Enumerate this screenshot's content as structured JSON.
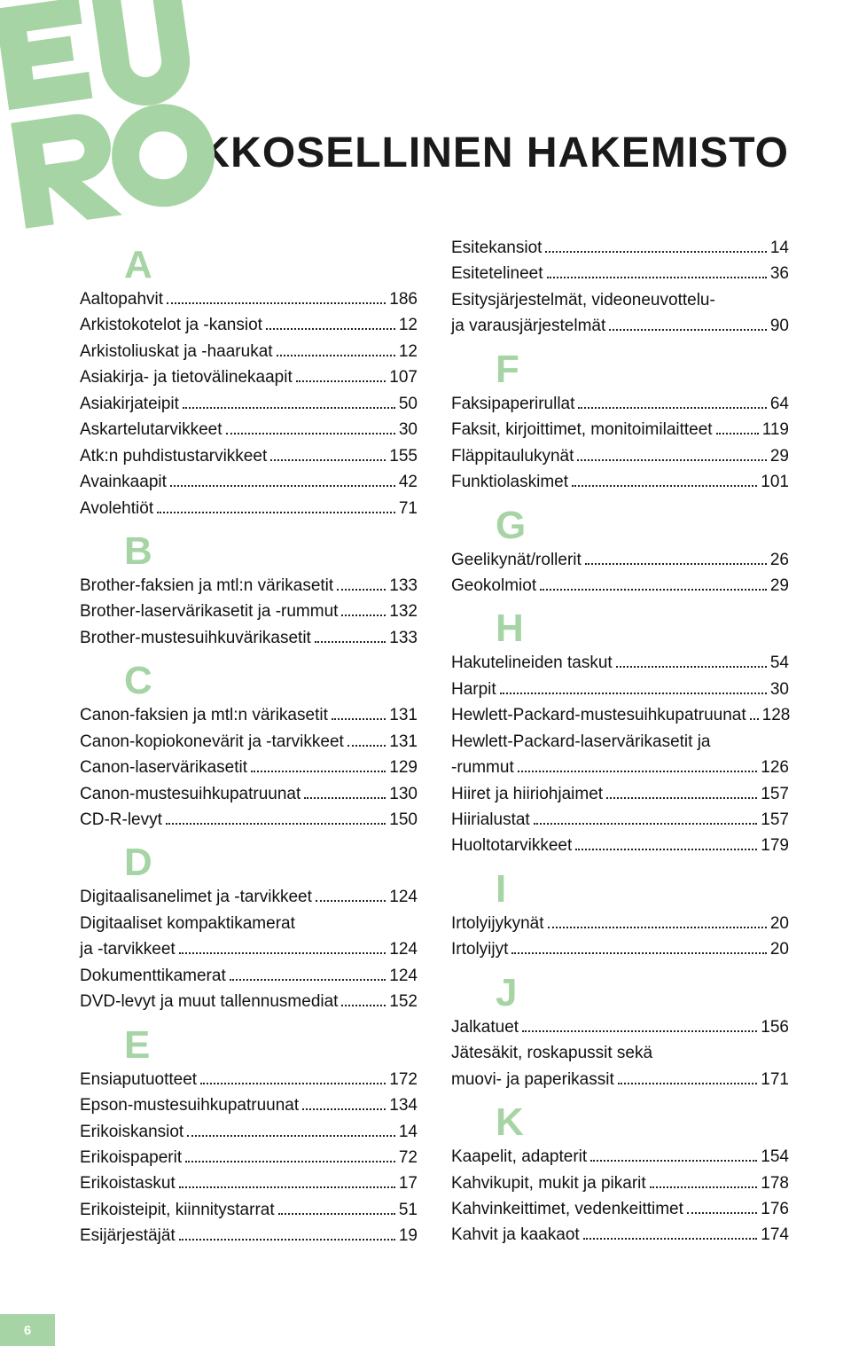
{
  "title": "AAKKOSELLINEN HAKEMISTO",
  "pageNumber": "6",
  "logoColor": "#a7d4a4",
  "letterColor": "#a7d4a4",
  "textColor": "#111111",
  "columns": [
    {
      "groups": [
        {
          "letter": "A",
          "items": [
            {
              "label": "Aaltopahvit",
              "page": "186"
            },
            {
              "label": "Arkistokotelot ja -kansiot",
              "page": "12"
            },
            {
              "label": "Arkistoliuskat ja -haarukat",
              "page": "12"
            },
            {
              "label": "Asiakirja- ja tietovälinekaapit",
              "page": "107"
            },
            {
              "label": "Asiakirjateipit",
              "page": "50"
            },
            {
              "label": "Askartelutarvikkeet",
              "page": "30"
            },
            {
              "label": "Atk:n puhdistustarvikkeet",
              "page": "155"
            },
            {
              "label": "Avainkaapit",
              "page": "42"
            },
            {
              "label": "Avolehtiöt",
              "page": "71"
            }
          ]
        },
        {
          "letter": "B",
          "items": [
            {
              "label": "Brother-faksien ja mtl:n värikasetit",
              "page": "133"
            },
            {
              "label": "Brother-laservärikasetit ja -rummut",
              "page": "132"
            },
            {
              "label": "Brother-mustesuihkuvärikasetit",
              "page": "133"
            }
          ]
        },
        {
          "letter": "C",
          "items": [
            {
              "label": "Canon-faksien ja mtl:n värikasetit",
              "page": "131"
            },
            {
              "label": "Canon-kopiokonevärit ja -tarvikkeet",
              "page": "131"
            },
            {
              "label": "Canon-laservärikasetit",
              "page": "129"
            },
            {
              "label": "Canon-mustesuihkupatruunat",
              "page": "130"
            },
            {
              "label": "CD-R-levyt",
              "page": "150"
            }
          ]
        },
        {
          "letter": "D",
          "items": [
            {
              "label": "Digitaalisanelimet ja -tarvikkeet",
              "page": "124"
            },
            {
              "label": "Digitaaliset kompaktikamerat",
              "cont": true
            },
            {
              "label": "ja -tarvikkeet",
              "page": "124"
            },
            {
              "label": "Dokumenttikamerat",
              "page": "124"
            },
            {
              "label": "DVD-levyt ja muut tallennusmediat",
              "page": "152"
            }
          ]
        },
        {
          "letter": "E",
          "items": [
            {
              "label": "Ensiaputuotteet",
              "page": "172"
            },
            {
              "label": "Epson-mustesuihkupatruunat",
              "page": "134"
            },
            {
              "label": "Erikoiskansiot",
              "page": "14"
            },
            {
              "label": "Erikoispaperit",
              "page": "72"
            },
            {
              "label": "Erikoistaskut",
              "page": "17"
            },
            {
              "label": "Erikoisteipit, kiinnitystarrat",
              "page": "51"
            },
            {
              "label": "Esijärjestäjät",
              "page": "19"
            }
          ]
        }
      ]
    },
    {
      "pre": [
        {
          "label": "Esitekansiot",
          "page": "14"
        },
        {
          "label": "Esitetelineet",
          "page": "36"
        },
        {
          "label": "Esitysjärjestelmät, videoneuvottelu-",
          "cont": true
        },
        {
          "label": "ja varausjärjestelmät",
          "page": "90"
        }
      ],
      "groups": [
        {
          "letter": "F",
          "items": [
            {
              "label": "Faksipaperirullat",
              "page": "64"
            },
            {
              "label": "Faksit, kirjoittimet, monitoimilaitteet",
              "page": "119"
            },
            {
              "label": "Fläppitaulukynät",
              "page": "29"
            },
            {
              "label": "Funktiolaskimet",
              "page": "101"
            }
          ]
        },
        {
          "letter": "G",
          "items": [
            {
              "label": "Geelikynät/rollerit",
              "page": "26"
            },
            {
              "label": "Geokolmiot",
              "page": "29"
            }
          ]
        },
        {
          "letter": "H",
          "items": [
            {
              "label": "Hakutelineiden taskut",
              "page": "54"
            },
            {
              "label": "Harpit",
              "page": "30"
            },
            {
              "label": "Hewlett-Packard-mustesuihkupatruunat",
              "page": "128"
            },
            {
              "label": "Hewlett-Packard-laservärikasetit ja",
              "cont": true
            },
            {
              "label": " -rummut",
              "page": "126"
            },
            {
              "label": "Hiiret ja hiiriohjaimet",
              "page": "157"
            },
            {
              "label": "Hiirialustat",
              "page": "157"
            },
            {
              "label": "Huoltotarvikkeet",
              "page": "179"
            }
          ]
        },
        {
          "letter": "I",
          "items": [
            {
              "label": "Irtolyijykynät",
              "page": "20"
            },
            {
              "label": "Irtolyijyt",
              "page": "20"
            }
          ]
        },
        {
          "letter": "J",
          "items": [
            {
              "label": "Jalkatuet",
              "page": "156"
            },
            {
              "label": "Jätesäkit, roskapussit sekä",
              "cont": true
            },
            {
              "label": "muovi- ja paperikassit",
              "page": "171"
            }
          ]
        },
        {
          "letter": "K",
          "items": [
            {
              "label": "Kaapelit, adapterit",
              "page": "154"
            },
            {
              "label": "Kahvikupit, mukit ja pikarit",
              "page": "178"
            },
            {
              "label": "Kahvinkeittimet, vedenkeittimet",
              "page": "176"
            },
            {
              "label": "Kahvit ja kaakaot",
              "page": "174"
            }
          ]
        }
      ]
    }
  ]
}
